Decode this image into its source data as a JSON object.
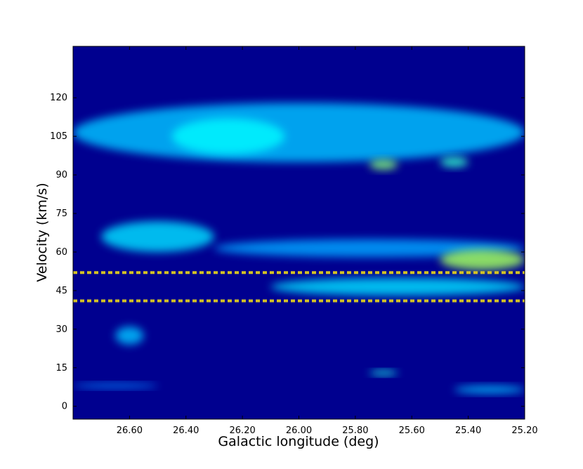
{
  "chart_data": {
    "type": "heatmap",
    "title": "",
    "xlabel": "Galactic longitude (deg)",
    "ylabel": "Velocity (km/s)",
    "xlim": [
      26.8,
      25.2
    ],
    "ylim": [
      -5,
      140
    ],
    "x_axis_reversed": true,
    "x_ticks": [
      "26.60",
      "26.40",
      "26.20",
      "26.00",
      "25.80",
      "25.60",
      "25.40",
      "25.20"
    ],
    "x_tick_values": [
      26.6,
      26.4,
      26.2,
      26.0,
      25.8,
      25.6,
      25.4,
      25.2
    ],
    "y_ticks": [
      "0",
      "15",
      "30",
      "45",
      "60",
      "75",
      "90",
      "105",
      "120"
    ],
    "y_tick_values": [
      0,
      15,
      30,
      45,
      60,
      75,
      90,
      105,
      120
    ],
    "colormap": "jet",
    "background_color": "#00008f",
    "grid": false,
    "legend": "none",
    "emission_features": [
      {
        "l_min": 26.8,
        "l_max": 25.2,
        "v_min": 95,
        "v_max": 118,
        "intensity": 0.35
      },
      {
        "l_min": 26.45,
        "l_max": 26.05,
        "v_min": 98,
        "v_max": 112,
        "intensity": 0.45
      },
      {
        "l_min": 25.75,
        "l_max": 25.65,
        "v_min": 92,
        "v_max": 96,
        "intensity": 0.7
      },
      {
        "l_min": 25.5,
        "l_max": 25.4,
        "v_min": 93,
        "v_max": 97,
        "intensity": 0.55
      },
      {
        "l_min": 26.7,
        "l_max": 26.3,
        "v_min": 60,
        "v_max": 72,
        "intensity": 0.4
      },
      {
        "l_min": 26.3,
        "l_max": 25.2,
        "v_min": 58,
        "v_max": 65,
        "intensity": 0.3
      },
      {
        "l_min": 25.5,
        "l_max": 25.2,
        "v_min": 53,
        "v_max": 61,
        "intensity": 0.75
      },
      {
        "l_min": 26.1,
        "l_max": 25.2,
        "v_min": 43,
        "v_max": 50,
        "intensity": 0.4
      },
      {
        "l_min": 26.65,
        "l_max": 26.55,
        "v_min": 24,
        "v_max": 31,
        "intensity": 0.35
      },
      {
        "l_min": 25.75,
        "l_max": 25.65,
        "v_min": 12,
        "v_max": 14,
        "intensity": 0.5
      },
      {
        "l_min": 25.45,
        "l_max": 25.2,
        "v_min": 5,
        "v_max": 8,
        "intensity": 0.35
      },
      {
        "l_min": 26.8,
        "l_max": 26.5,
        "v_min": 7,
        "v_max": 9,
        "intensity": 0.25
      }
    ],
    "annotations": [
      {
        "type": "hline",
        "style": "dotted",
        "color": "#d4c224",
        "y": 52
      },
      {
        "type": "hline",
        "style": "dotted",
        "color": "#d4c224",
        "y": 41
      }
    ]
  }
}
